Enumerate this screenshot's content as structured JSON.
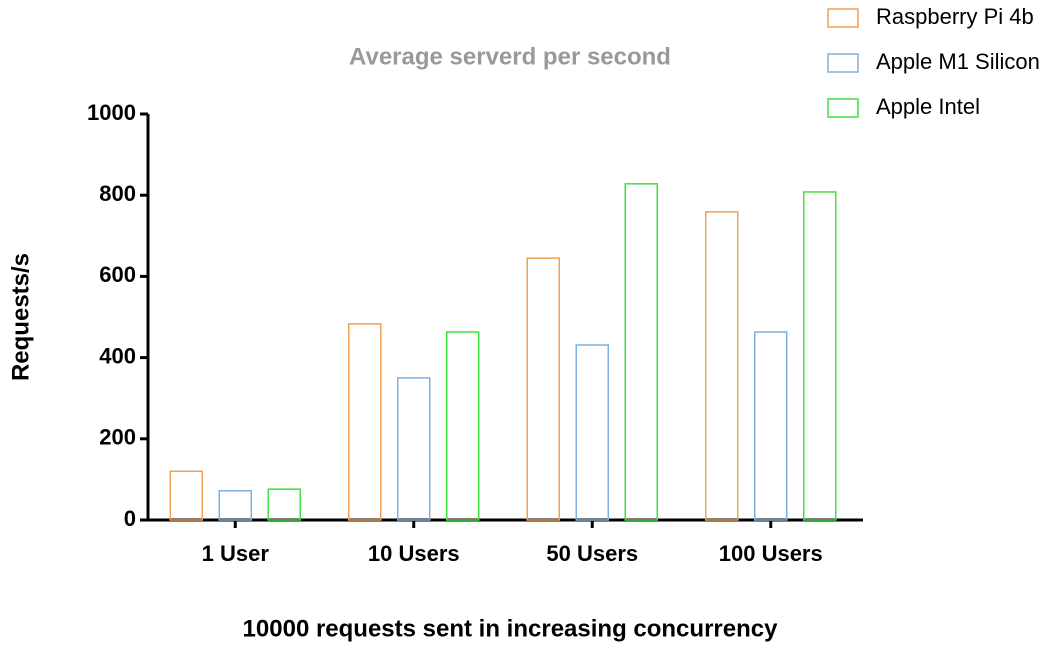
{
  "chart_data": {
    "type": "bar",
    "title": "Average serverd per second",
    "x_label": "10000 requests sent in increasing concurrency",
    "y_label": "Requests/s",
    "categories": [
      "1 User",
      "10 Users",
      "50 Users",
      "100 Users"
    ],
    "series": [
      {
        "name": "Raspberry Pi 4b",
        "color": "#f0a050",
        "values": [
          120,
          483,
          645,
          759
        ]
      },
      {
        "name": "Apple M1 Silicon",
        "color": "#80b0e0",
        "values": [
          72,
          350,
          431,
          463
        ]
      },
      {
        "name": "Apple Intel",
        "color": "#40e040",
        "values": [
          76,
          463,
          828,
          808
        ]
      }
    ],
    "ylim": [
      0,
      1000
    ],
    "yticks": [
      0,
      200,
      400,
      600,
      800,
      1000
    ],
    "legend": "top-right"
  }
}
